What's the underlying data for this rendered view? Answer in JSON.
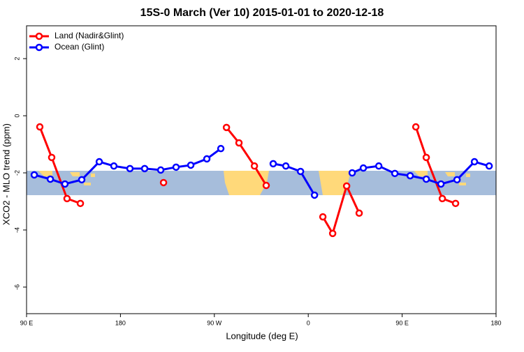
{
  "chart_data": {
    "type": "line",
    "title": "15S-0 March (Ver 10)   2015-01-01 to 2020-12-18",
    "xlabel": "Longitude (deg E)",
    "ylabel": "XCO2 - MLO trend (ppm)",
    "xlim": [
      90,
      540
    ],
    "xticks": [
      {
        "value": 90,
        "label": "90 E"
      },
      {
        "value": 180,
        "label": "180"
      },
      {
        "value": 270,
        "label": "90 W"
      },
      {
        "value": 360,
        "label": "0"
      },
      {
        "value": 450,
        "label": "90 E"
      },
      {
        "value": 540,
        "label": "180"
      }
    ],
    "ylim": [
      -6.93,
      3.15
    ],
    "yticks": [
      -6,
      -4,
      -2,
      0,
      2
    ],
    "legend": "top-left",
    "series": [
      {
        "name": "Land (Nadir&Glint)",
        "color": "#ff0000",
        "x": [
          102.7,
          114.1,
          128.8,
          141.6,
          null,
          221.3,
          null,
          281.6,
          293.6,
          308.4,
          319.7,
          null,
          374,
          383.4,
          396.8,
          408.8,
          null,
          463.1,
          473.1,
          488.5,
          501.2
        ],
        "values": [
          -0.39,
          -1.46,
          -2.9,
          -3.07,
          null,
          -2.34,
          null,
          -0.41,
          -0.95,
          -1.76,
          -2.44,
          null,
          -3.54,
          -4.12,
          -2.46,
          -3.41,
          null,
          -0.39,
          -1.46,
          -2.9,
          -3.07
        ]
      },
      {
        "name": "Ocean (Glint)",
        "color": "#0000ff",
        "x": [
          97.4,
          112.8,
          126.8,
          142.9,
          159.7,
          173.7,
          189.1,
          203.2,
          218.6,
          233.3,
          247.4,
          262.8,
          276.2,
          null,
          326.4,
          338.5,
          352.6,
          366,
          null,
          402.1,
          412.8,
          427.6,
          443,
          457.7,
          473.1,
          487.2,
          502.6,
          519.3,
          533.4
        ],
        "values": [
          -2.07,
          -2.22,
          -2.39,
          -2.24,
          -1.61,
          -1.76,
          -1.85,
          -1.85,
          -1.9,
          -1.8,
          -1.73,
          -1.51,
          -1.15,
          null,
          -1.68,
          -1.76,
          -1.95,
          -2.78,
          null,
          -2.0,
          -1.83,
          -1.76,
          -2.02,
          -2.1,
          -2.22,
          -2.39,
          -2.24,
          -1.61,
          -1.76
        ]
      }
    ]
  }
}
